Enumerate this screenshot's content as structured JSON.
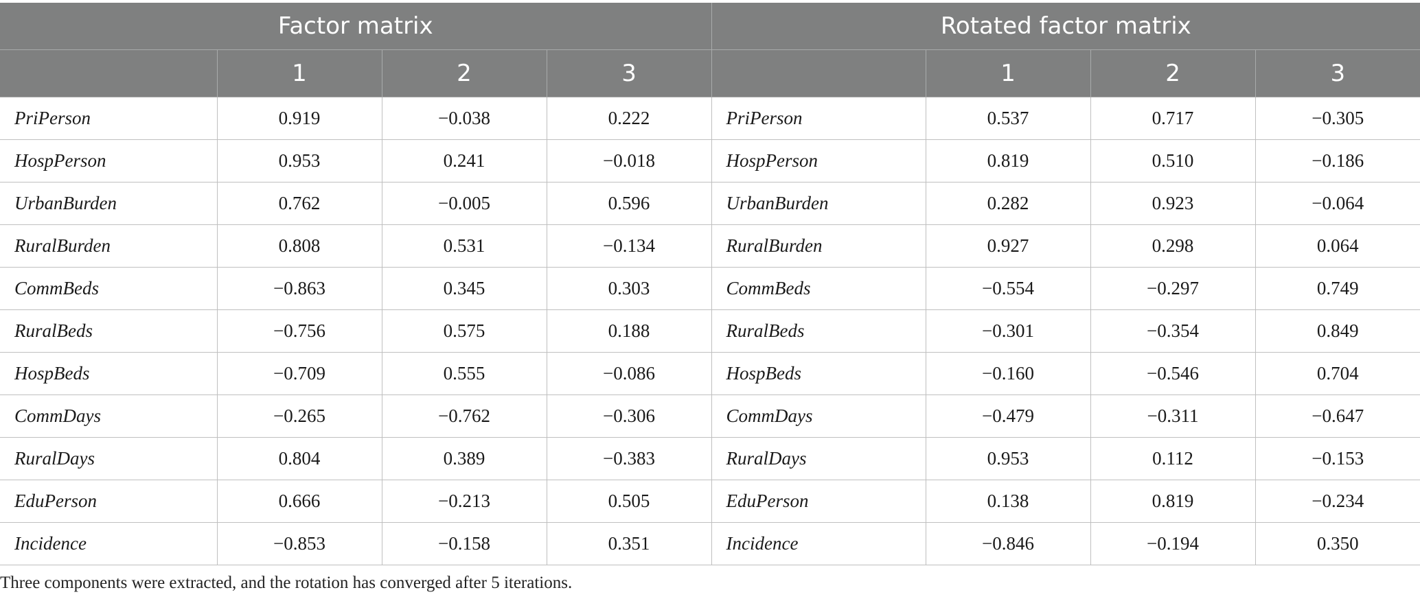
{
  "table": {
    "group_headers": [
      "Factor matrix",
      "Rotated factor matrix"
    ],
    "factor_columns": [
      "1",
      "2",
      "3"
    ],
    "rows": [
      {
        "variable": "PriPerson",
        "factor": [
          "0.919",
          "−0.038",
          "0.222"
        ],
        "variable_rotated": "PriPerson",
        "rotated": [
          "0.537",
          "0.717",
          "−0.305"
        ]
      },
      {
        "variable": "HospPerson",
        "factor": [
          "0.953",
          "0.241",
          "−0.018"
        ],
        "variable_rotated": "HospPerson",
        "rotated": [
          "0.819",
          "0.510",
          "−0.186"
        ]
      },
      {
        "variable": "UrbanBurden",
        "factor": [
          "0.762",
          "−0.005",
          "0.596"
        ],
        "variable_rotated": "UrbanBurden",
        "rotated": [
          "0.282",
          "0.923",
          "−0.064"
        ]
      },
      {
        "variable": "RuralBurden",
        "factor": [
          "0.808",
          "0.531",
          "−0.134"
        ],
        "variable_rotated": "RuralBurden",
        "rotated": [
          "0.927",
          "0.298",
          "0.064"
        ]
      },
      {
        "variable": "CommBeds",
        "factor": [
          "−0.863",
          "0.345",
          "0.303"
        ],
        "variable_rotated": "CommBeds",
        "rotated": [
          "−0.554",
          "−0.297",
          "0.749"
        ]
      },
      {
        "variable": "RuralBeds",
        "factor": [
          "−0.756",
          "0.575",
          "0.188"
        ],
        "variable_rotated": "RuralBeds",
        "rotated": [
          "−0.301",
          "−0.354",
          "0.849"
        ]
      },
      {
        "variable": "HospBeds",
        "factor": [
          "−0.709",
          "0.555",
          "−0.086"
        ],
        "variable_rotated": "HospBeds",
        "rotated": [
          "−0.160",
          "−0.546",
          "0.704"
        ]
      },
      {
        "variable": "CommDays",
        "factor": [
          "−0.265",
          "−0.762",
          "−0.306"
        ],
        "variable_rotated": "CommDays",
        "rotated": [
          "−0.479",
          "−0.311",
          "−0.647"
        ]
      },
      {
        "variable": "RuralDays",
        "factor": [
          "0.804",
          "0.389",
          "−0.383"
        ],
        "variable_rotated": "RuralDays",
        "rotated": [
          "0.953",
          "0.112",
          "−0.153"
        ]
      },
      {
        "variable": "EduPerson",
        "factor": [
          "0.666",
          "−0.213",
          "0.505"
        ],
        "variable_rotated": "EduPerson",
        "rotated": [
          "0.138",
          "0.819",
          "−0.234"
        ]
      },
      {
        "variable": "Incidence",
        "factor": [
          "−0.853",
          "−0.158",
          "0.351"
        ],
        "variable_rotated": "Incidence",
        "rotated": [
          "−0.846",
          "−0.194",
          "0.350"
        ]
      }
    ]
  },
  "footnote": "Three components were extracted, and the rotation has converged after 5 iterations.",
  "colors": {
    "header_bg": "#7f8080",
    "header_text": "#ffffff",
    "grid_line": "#bfbfbf"
  }
}
